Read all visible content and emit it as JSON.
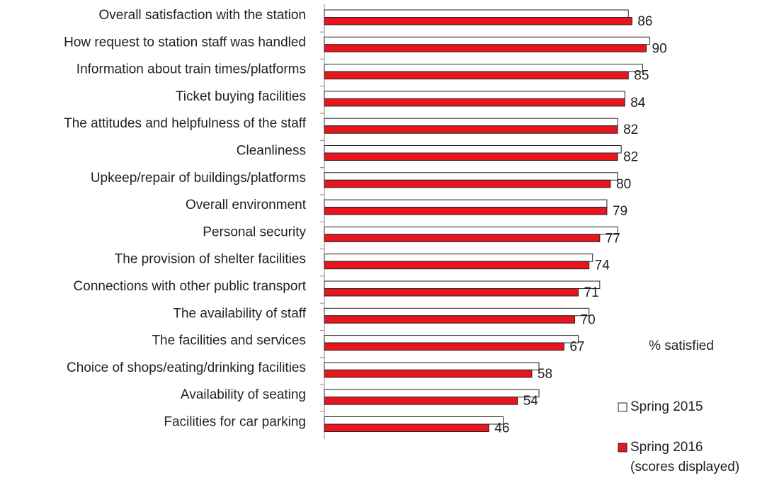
{
  "chart_data": {
    "type": "bar",
    "orientation": "horizontal",
    "categories": [
      "Overall satisfaction with the station",
      "How request to station staff was handled",
      "Information about train times/platforms",
      "Ticket buying facilities",
      "The attitudes and helpfulness of the staff",
      "Cleanliness",
      "Upkeep/repair of buildings/platforms",
      "Overall environment",
      "Personal security",
      "The provision of shelter facilities",
      "Connections with other public transport",
      "The availability of staff",
      "The facilities and services",
      "Choice of shops/eating/drinking facilities",
      "Availability of seating",
      "Facilities for car parking"
    ],
    "series": [
      {
        "name": "Spring 2015",
        "color": "#ffffff",
        "values": [
          85,
          91,
          89,
          84,
          82,
          83,
          82,
          79,
          82,
          75,
          77,
          74,
          71,
          60,
          60,
          50
        ]
      },
      {
        "name": "Spring 2016",
        "color": "#e8141e",
        "values": [
          86,
          90,
          85,
          84,
          82,
          82,
          80,
          79,
          77,
          74,
          71,
          70,
          67,
          58,
          54,
          46
        ]
      }
    ],
    "legend_note": "(scores displayed)",
    "x_label": "% satisfied",
    "xlim": [
      0,
      100
    ]
  }
}
